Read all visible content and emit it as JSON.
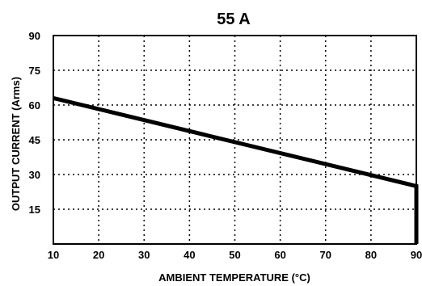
{
  "chart_data": {
    "type": "line",
    "title": "55 A",
    "xlabel": "AMBIENT TEMPERATURE (°C)",
    "ylabel": "OUTPUT CURRENT (Arms)",
    "xlim": [
      10,
      90
    ],
    "ylim": [
      0,
      90
    ],
    "x_ticks": [
      "10",
      "20",
      "30",
      "40",
      "50",
      "60",
      "70",
      "80",
      "90"
    ],
    "y_ticks": [
      "15",
      "30",
      "45",
      "60",
      "75",
      "90"
    ],
    "grid": true,
    "series": [
      {
        "x": [
          10,
          90,
          90
        ],
        "y": [
          63,
          25,
          0
        ]
      }
    ]
  }
}
